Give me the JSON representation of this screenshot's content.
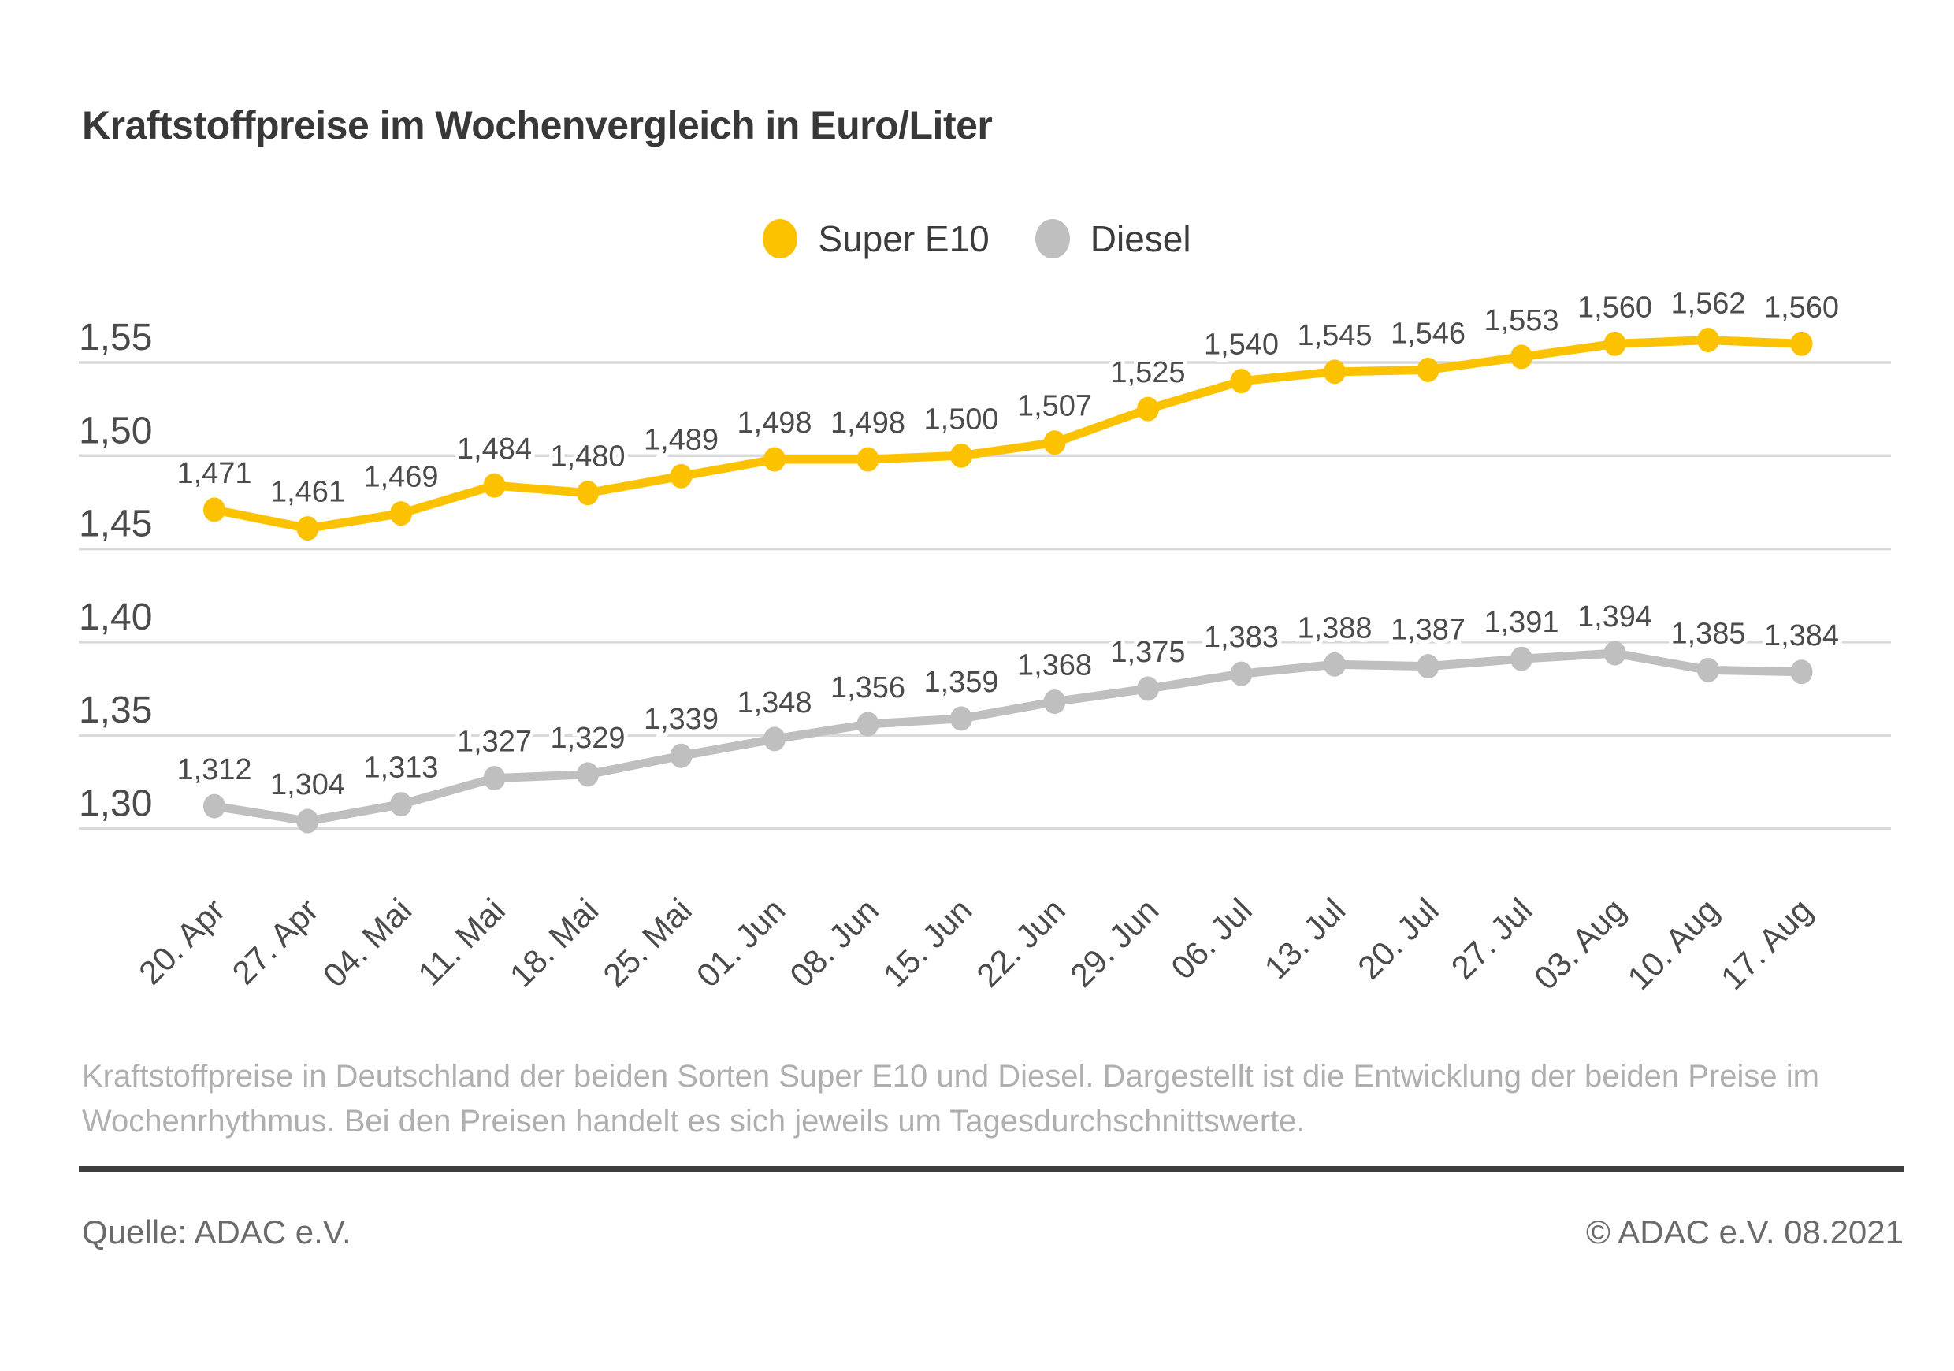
{
  "title": "Kraftstoffpreise im Wochenvergleich in Euro/Liter",
  "chart_data": {
    "type": "line",
    "title": "Kraftstoffpreise im Wochenvergleich in Euro/Liter",
    "unit": "Euro/Liter",
    "categories": [
      "20. Apr",
      "27. Apr",
      "04. Mai",
      "11. Mai",
      "18. Mai",
      "25. Mai",
      "01. Jun",
      "08. Jun",
      "15. Jun",
      "22. Jun",
      "29. Jun",
      "06. Jul",
      "13. Jul",
      "20. Jul",
      "27. Jul",
      "03. Aug",
      "10. Aug",
      "17. Aug"
    ],
    "series": [
      {
        "name": "Super E10",
        "color": "#fcc200",
        "values": [
          1.471,
          1.461,
          1.469,
          1.484,
          1.48,
          1.489,
          1.498,
          1.498,
          1.5,
          1.507,
          1.525,
          1.54,
          1.545,
          1.546,
          1.553,
          1.56,
          1.562,
          1.56
        ]
      },
      {
        "name": "Diesel",
        "color": "#bfbfbf",
        "values": [
          1.312,
          1.304,
          1.313,
          1.327,
          1.329,
          1.339,
          1.348,
          1.356,
          1.359,
          1.368,
          1.375,
          1.383,
          1.388,
          1.387,
          1.391,
          1.394,
          1.385,
          1.384
        ]
      }
    ],
    "ylim": [
      1.3,
      1.55
    ],
    "ytick_step": 0.05,
    "ytick_labels": [
      "1,55",
      "1,50",
      "1,45",
      "1,40",
      "1,35",
      "1,30"
    ],
    "grid": "horizontal",
    "legend_position": "top",
    "value_labels": true,
    "decimal_separator": ","
  },
  "footer": {
    "description_lines": [
      "Kraftstoffpreise in Deutschland der beiden Sorten Super E10 und Diesel. Dargestellt ist die Entwicklung der beiden Preise im",
      "Wochenrhythmus. Bei den Preisen handelt es sich jeweils um Tagesdurchschnittswerte."
    ],
    "source": "Quelle: ADAC e.V.",
    "copyright": "© ADAC e.V. 08.2021"
  },
  "colors": {
    "super_e10": "#fcc200",
    "diesel": "#bfbfbf",
    "gridline": "#d9d9d9",
    "axis_text": "#4b4b4b",
    "value_label_text": "#4b4b4b",
    "title_text": "#383838",
    "description_text": "#afafaf",
    "footer_text": "#6b6b6b",
    "divider": "#3e3e3e"
  }
}
